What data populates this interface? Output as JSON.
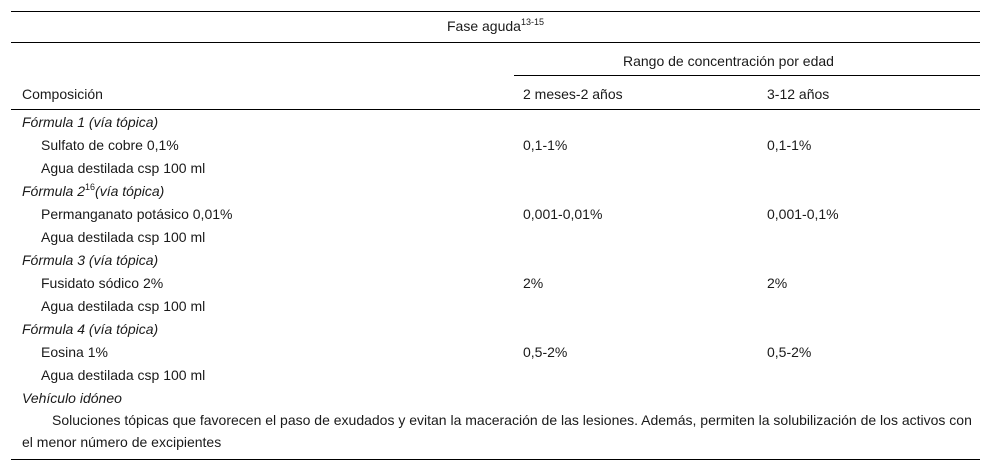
{
  "table": {
    "caption_text": "Fase aguda",
    "caption_sup": "13-15",
    "group_header": "Rango de concentración por edad",
    "col_composition": "Composición",
    "col_age1": "2 meses-2 años",
    "col_age2": "3-12 años",
    "formulas": [
      {
        "title": "Fórmula 1 (vía tópica)",
        "title_sup": "",
        "title_suffix": "",
        "ingredient": "Sulfato de cobre 0,1%",
        "range1": "0,1-1%",
        "range2": "0,1-1%",
        "vehicle": "Agua destilada csp 100 ml"
      },
      {
        "title": "Fórmula 2",
        "title_sup": "16",
        "title_suffix": "(vía tópica)",
        "ingredient": "Permanganato potásico 0,01%",
        "range1": "0,001-0,01%",
        "range2": "0,001-0,1%",
        "vehicle": "Agua destilada csp 100 ml"
      },
      {
        "title": "Fórmula 3 (vía tópica)",
        "title_sup": "",
        "title_suffix": "",
        "ingredient": "Fusidato sódico 2%",
        "range1": "2%",
        "range2": "2%",
        "vehicle": "Agua destilada csp 100 ml"
      },
      {
        "title": "Fórmula 4 (vía tópica)",
        "title_sup": "",
        "title_suffix": "",
        "ingredient": "Eosina 1%",
        "range1": "0,5-2%",
        "range2": "0,5-2%",
        "vehicle": "Agua destilada csp 100 ml"
      }
    ],
    "vehicle_title": "Vehículo idóneo",
    "vehicle_text": "Soluciones tópicas que favorecen el paso de exudados y evitan la maceración de las lesiones. Además, permiten la solubilización de los activos con el menor número de excipientes"
  }
}
